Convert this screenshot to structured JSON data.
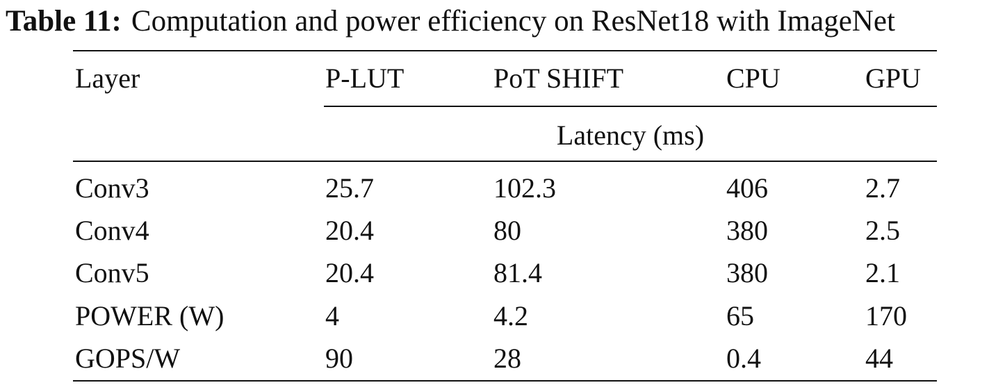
{
  "caption": {
    "label": "Table 11:",
    "text": "Computation and power efficiency on ResNet18 with ImageNet"
  },
  "table": {
    "columns": [
      "Layer",
      "P-LUT",
      "PoT SHIFT",
      "CPU",
      "GPU"
    ],
    "subheader": "Latency (ms)",
    "rows": [
      [
        "Conv3",
        "25.7",
        "102.3",
        "406",
        "2.7"
      ],
      [
        "Conv4",
        "20.4",
        "80",
        "380",
        "2.5"
      ],
      [
        "Conv5",
        "20.4",
        "81.4",
        "380",
        "2.1"
      ],
      [
        "POWER (W)",
        "4",
        "4.2",
        "65",
        "170"
      ],
      [
        "GOPS/W",
        "90",
        "28",
        "0.4",
        "44"
      ]
    ]
  }
}
